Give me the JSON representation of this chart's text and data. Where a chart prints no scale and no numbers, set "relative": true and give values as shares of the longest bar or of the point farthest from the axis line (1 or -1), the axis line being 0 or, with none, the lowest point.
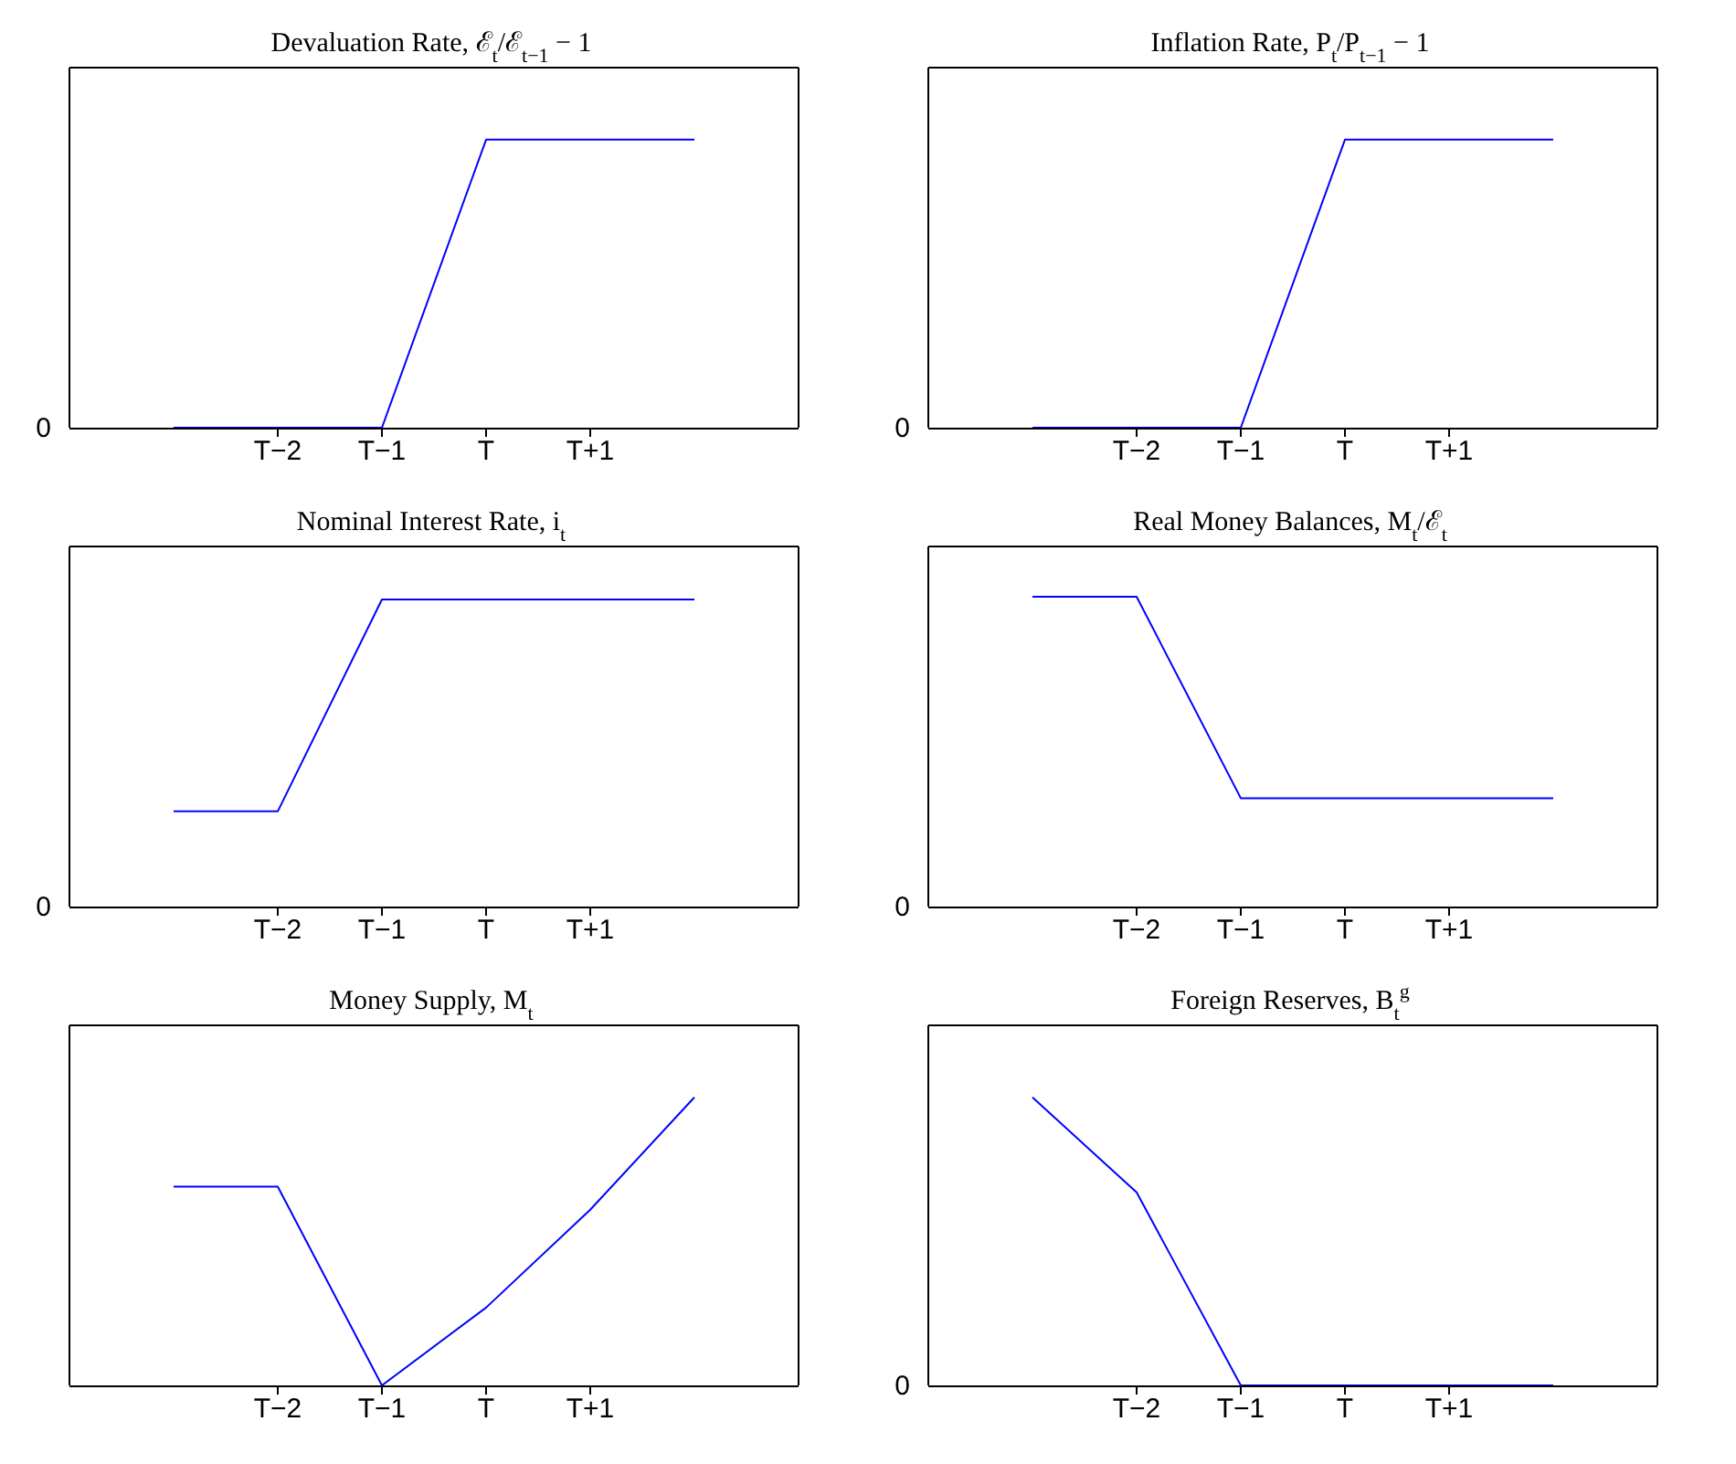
{
  "chart_data": [
    {
      "type": "line",
      "title": "Devaluation Rate, ℰ$_{t}$/ℰ$_{t−1}$ − 1",
      "categories": [
        null,
        "T−2",
        "T−1",
        "T",
        "T+1",
        null
      ],
      "relative": true,
      "color": "#0000ff",
      "values": [
        0,
        0,
        0,
        1,
        1,
        1
      ],
      "annotations": [
        "0"
      ]
    },
    {
      "type": "line",
      "title": "Inflation Rate, P$_{t}$/P$_{t−1}$ − 1",
      "categories": [
        null,
        "T−2",
        "T−1",
        "T",
        "T+1",
        null
      ],
      "relative": true,
      "color": "#0000ff",
      "values": [
        0,
        0,
        0,
        1,
        1,
        1
      ],
      "annotations": [
        "0"
      ]
    },
    {
      "type": "line",
      "title": "Nominal Interest Rate, i$_{t}$",
      "categories": [
        null,
        "T−2",
        "T−1",
        "T",
        "T+1",
        null
      ],
      "relative": true,
      "color": "#0000ff",
      "values": [
        0.31,
        0.31,
        1,
        1,
        1,
        1
      ],
      "annotations": [
        "0"
      ]
    },
    {
      "type": "line",
      "title": "Real Money Balances, M$_{t}$/ℰ$_{t}$",
      "categories": [
        null,
        "T−2",
        "T−1",
        "T",
        "T+1",
        null
      ],
      "relative": true,
      "color": "#0000ff",
      "values": [
        1,
        1,
        0.35,
        0.35,
        0.35,
        0.35
      ],
      "annotations": [
        "0"
      ]
    },
    {
      "type": "line",
      "title": "Money Supply, M$_{t}$",
      "categories": [
        null,
        "T−2",
        "T−1",
        "T",
        "T+1",
        null
      ],
      "relative": true,
      "color": "#0000ff",
      "values": [
        0.69,
        0.69,
        0,
        0.27,
        0.61,
        1
      ]
    },
    {
      "type": "line",
      "title": "Foreign Reserves, B$_{t}$$^{g}$",
      "categories": [
        null,
        "T−2",
        "T−1",
        "T",
        "T+1",
        null
      ],
      "relative": true,
      "color": "#0000ff",
      "values": [
        1,
        0.67,
        0,
        0,
        0,
        0
      ],
      "annotations": [
        "0"
      ]
    }
  ]
}
